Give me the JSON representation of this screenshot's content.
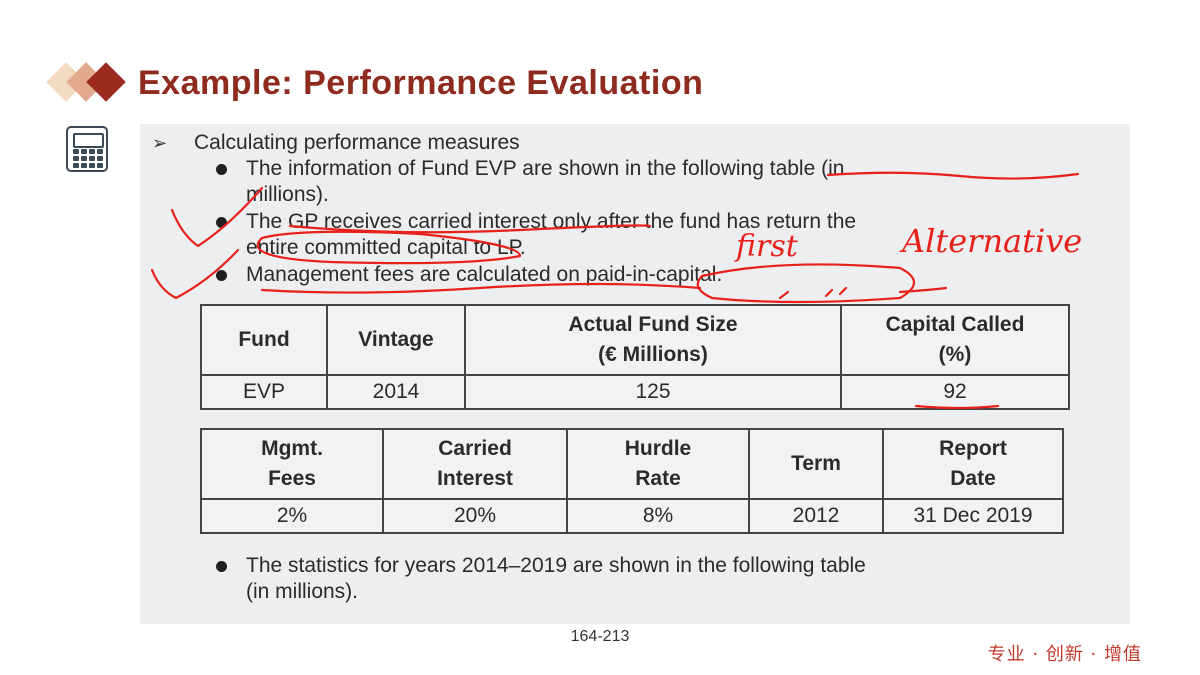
{
  "slide": {
    "title": "Example: Performance Evaluation",
    "heading": "Calculating performance measures",
    "bullets": [
      [
        "The information of Fund EVP are shown in the following table (in",
        "millions)."
      ],
      [
        "The GP receives carried interest only after the fund has return the",
        "entire committed capital to LP."
      ],
      [
        "Management fees are calculated on paid-in-capital."
      ]
    ],
    "table1": {
      "headers": [
        "Fund",
        "Vintage",
        "Actual Fund Size",
        "(€ Millions)",
        "Capital Called",
        "(%)"
      ],
      "row": [
        "EVP",
        "2014",
        "125",
        "92"
      ]
    },
    "table2": {
      "headers": [
        "Mgmt.",
        "Fees",
        "Carried",
        "Interest",
        "Hurdle",
        "Rate",
        "Term",
        "Report",
        "Date"
      ],
      "row": [
        "2%",
        "20%",
        "8%",
        "2012",
        "31 Dec 2019"
      ]
    },
    "closing_bullet": [
      "The statistics for years 2014–2019 are shown in the following table",
      "(in millions)."
    ],
    "page_number": "164-213",
    "slogan": "专业 · 创新 · 增值"
  },
  "handwriting": {
    "notes": [
      "first",
      "Alternative"
    ],
    "ink_color": "#e8201a"
  }
}
